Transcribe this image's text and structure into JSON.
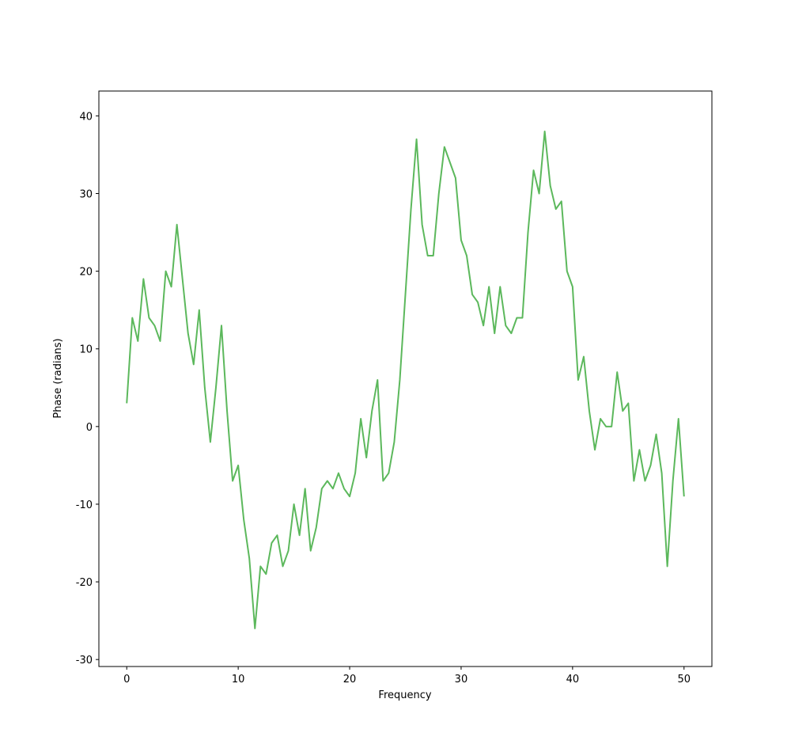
{
  "chart_data": {
    "type": "line",
    "x_label": "Frequency",
    "y_label": "Phase (radians)",
    "x": [
      0,
      0.5,
      1,
      1.5,
      2,
      2.5,
      3,
      3.5,
      4,
      4.5,
      5,
      5.5,
      6,
      6.5,
      7,
      7.5,
      8,
      8.5,
      9,
      9.5,
      10,
      10.5,
      11,
      11.5,
      12,
      12.5,
      13,
      13.5,
      14,
      14.5,
      15,
      15.5,
      16,
      16.5,
      17,
      17.5,
      18,
      18.5,
      19,
      19.5,
      20,
      20.5,
      21,
      21.5,
      22,
      22.5,
      23,
      23.5,
      24,
      24.5,
      25,
      25.5,
      26,
      26.5,
      27,
      27.5,
      28,
      28.5,
      29,
      29.5,
      30,
      30.5,
      31,
      31.5,
      32,
      32.5,
      33,
      33.5,
      34,
      34.5,
      35,
      35.5,
      36,
      36.5,
      37,
      37.5,
      38,
      38.5,
      39,
      39.5,
      40,
      40.5,
      41,
      41.5,
      42,
      42.5,
      43,
      43.5,
      44,
      44.5,
      45,
      45.5,
      46,
      46.5,
      47,
      47.5,
      48,
      48.5,
      49,
      49.5,
      50
    ],
    "series": [
      {
        "name": "phase",
        "color": "#5cb85c",
        "values": [
          3,
          14,
          11,
          19,
          14,
          13,
          11,
          20,
          18,
          26,
          19,
          12,
          8,
          15,
          5,
          -2,
          5,
          13,
          2,
          -7,
          -5,
          -12,
          -17,
          -26,
          -18,
          -19,
          -15,
          -14,
          -18,
          -16,
          -10,
          -14,
          -8,
          -16,
          -13,
          -8,
          -7,
          -8,
          -6,
          -8,
          -9,
          -6,
          1,
          -4,
          2,
          6,
          -7,
          -6,
          -2,
          6,
          17,
          28,
          37,
          26,
          22,
          22,
          30,
          36,
          34,
          32,
          24,
          22,
          17,
          16,
          13,
          18,
          12,
          18,
          13,
          12,
          14,
          14,
          25,
          33,
          30,
          38,
          31,
          28,
          29,
          20,
          18,
          6,
          9,
          2,
          -3,
          1,
          0,
          0,
          7,
          2,
          3,
          -7,
          -3,
          -7,
          -5,
          -1,
          -6,
          -18,
          -7,
          1,
          -9
        ]
      }
    ],
    "xlim": [
      -2.5,
      52.5
    ],
    "xticks": [
      0,
      10,
      20,
      30,
      40,
      50
    ],
    "ylim": [
      -30.9,
      43.2
    ],
    "yticks": [
      -30,
      -20,
      -10,
      0,
      10,
      20,
      30,
      40
    ]
  }
}
